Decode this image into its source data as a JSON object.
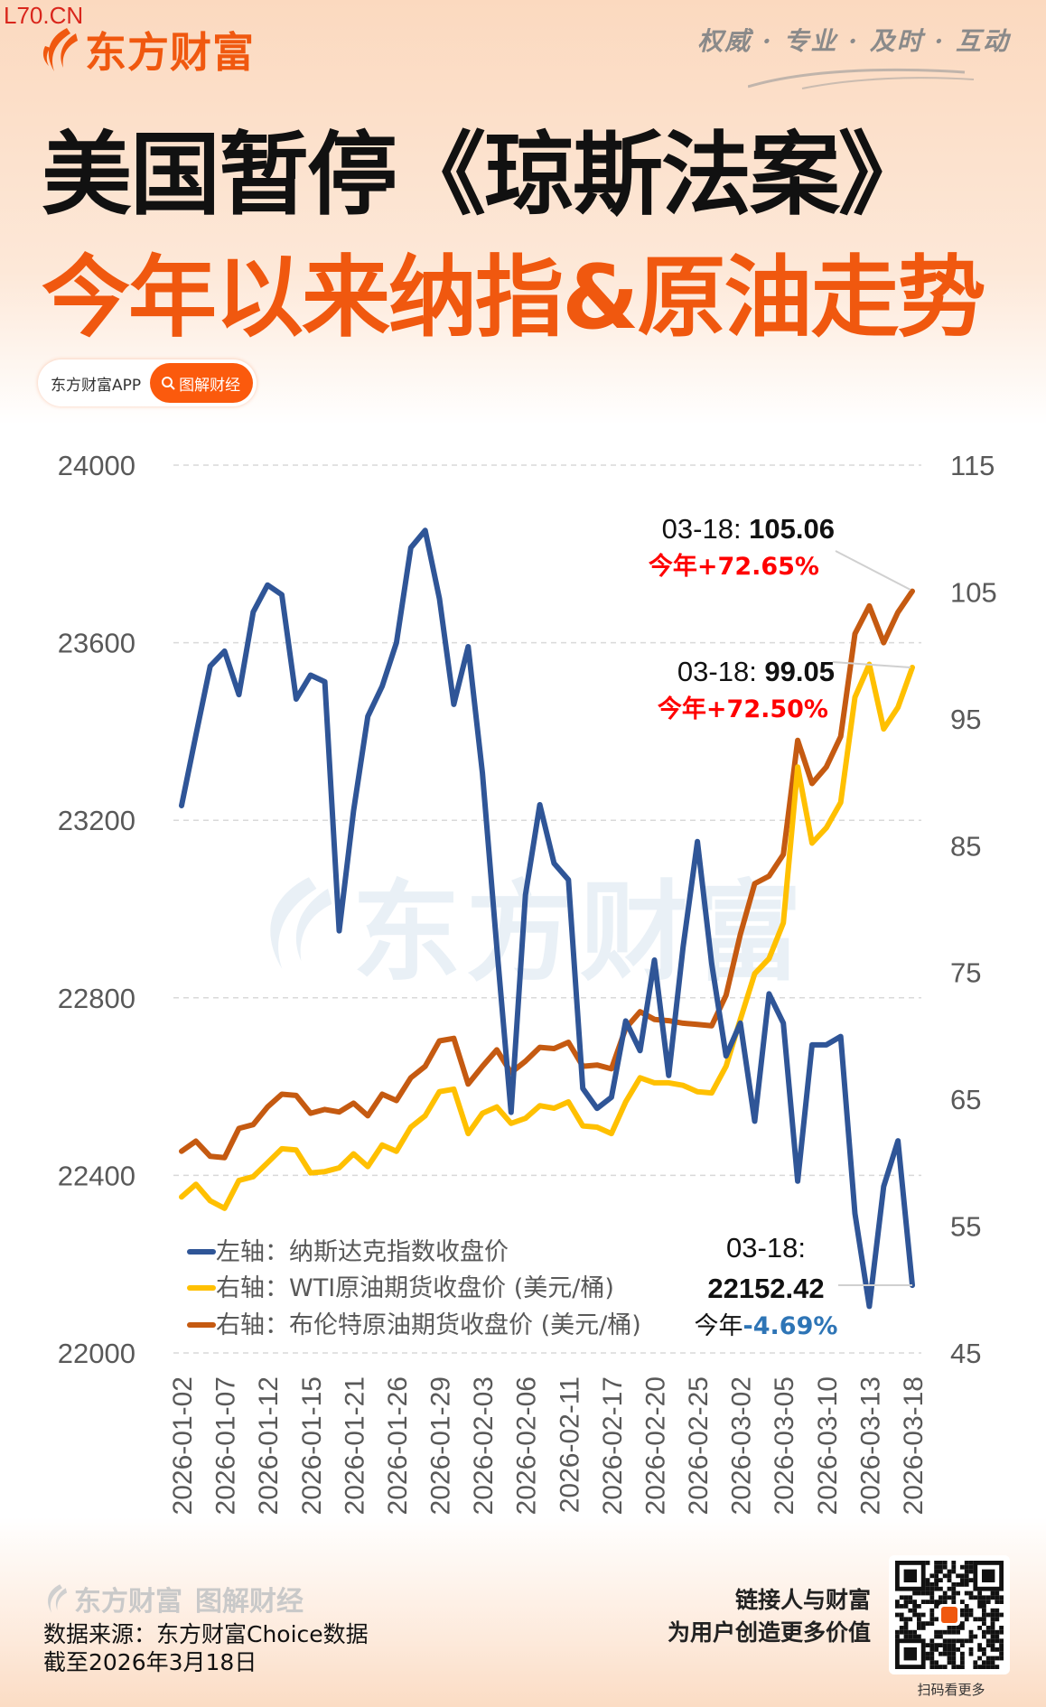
{
  "header": {
    "site_tag": "L70.CN",
    "brand": "东方财富",
    "slogan": "权威 · 专业 · 及时 · 互动",
    "title_line1": "美国暂停《琼斯法案》",
    "title_line2": "今年以来纳指&原油走势",
    "badge_app": "东方财富APP",
    "badge_pill": "图解财经",
    "watermark": "东方财富"
  },
  "colors": {
    "accent": "#f0580f",
    "nasdaq": "#2F5597",
    "wti": "#FFC000",
    "brent": "#C55A11",
    "up_red": "#FF0000",
    "down_blue": "#2E75B6"
  },
  "chart_data": {
    "type": "line",
    "dual_axis": true,
    "grid": "dashed horizontal, left-axis ticks",
    "x": [
      "2026-01-02",
      "2026-01-05",
      "2026-01-06",
      "2026-01-07",
      "2026-01-08",
      "2026-01-09",
      "2026-01-12",
      "2026-01-13",
      "2026-01-14",
      "2026-01-15",
      "2026-01-16",
      "2026-01-20",
      "2026-01-21",
      "2026-01-22",
      "2026-01-23",
      "2026-01-26",
      "2026-01-27",
      "2026-01-28",
      "2026-01-29",
      "2026-01-30",
      "2026-02-02",
      "2026-02-03",
      "2026-02-04",
      "2026-02-05",
      "2026-02-06",
      "2026-02-09",
      "2026-02-10",
      "2026-02-11",
      "2026-02-12",
      "2026-02-13",
      "2026-02-17",
      "2026-02-18",
      "2026-02-19",
      "2026-02-20",
      "2026-02-23",
      "2026-02-24",
      "2026-02-25",
      "2026-02-26",
      "2026-02-27",
      "2026-03-02",
      "2026-03-03",
      "2026-03-04",
      "2026-03-05",
      "2026-03-06",
      "2026-03-09",
      "2026-03-10",
      "2026-03-11",
      "2026-03-12",
      "2026-03-13",
      "2026-03-16",
      "2026-03-17",
      "2026-03-18"
    ],
    "x_tick_labels": [
      "2026-01-02",
      "2026-01-07",
      "2026-01-12",
      "2026-01-15",
      "2026-01-21",
      "2026-01-26",
      "2026-01-29",
      "2026-02-03",
      "2026-02-06",
      "2026-02-11",
      "2026-02-17",
      "2026-02-20",
      "2026-02-25",
      "2026-03-02",
      "2026-03-05",
      "2026-03-10",
      "2026-03-13",
      "2026-03-18"
    ],
    "y_left": {
      "range": [
        22000,
        24000
      ],
      "ticks": [
        "24000",
        "23600",
        "23200",
        "22800",
        "22400",
        "22000"
      ]
    },
    "y_right": {
      "range": [
        45,
        115
      ],
      "ticks": [
        "115",
        "105",
        "95",
        "85",
        "75",
        "65",
        "55",
        "45"
      ]
    },
    "legend_position": "bottom-left",
    "series": [
      {
        "name": "左轴：纳斯达克指数收盘价",
        "axis": "left",
        "color": "#2F5597",
        "values": [
          23233,
          23392,
          23547,
          23581,
          23483,
          23669,
          23730,
          23708,
          23473,
          23527,
          23512,
          22951,
          23221,
          23434,
          23502,
          23600,
          23814,
          23853,
          23699,
          23461,
          23591,
          23306,
          22914,
          22542,
          23032,
          23235,
          23103,
          23066,
          22596,
          22551,
          22576,
          22748,
          22681,
          22885,
          22625,
          22914,
          23152,
          22877,
          22669,
          22743,
          22522,
          22809,
          22743,
          22387,
          22694,
          22694,
          22713,
          22314,
          22105,
          22375,
          22478,
          22152.42
        ]
      },
      {
        "name": "右轴：WTI原油期货收盘价 (美元/桶)",
        "axis": "right",
        "color": "#FFC000",
        "values": [
          57.3,
          58.3,
          57.0,
          56.4,
          58.6,
          58.9,
          60.0,
          61.1,
          61.0,
          59.2,
          59.3,
          59.6,
          60.7,
          59.7,
          61.4,
          60.9,
          62.8,
          63.7,
          65.6,
          65.8,
          62.3,
          63.9,
          64.4,
          63.1,
          63.5,
          64.5,
          64.3,
          64.8,
          62.9,
          62.8,
          62.3,
          64.8,
          66.7,
          66.3,
          66.3,
          66.1,
          65.6,
          65.5,
          67.6,
          71.3,
          74.9,
          76.1,
          78.9,
          91.2,
          85.2,
          86.4,
          88.4,
          96.7,
          99.3,
          94.2,
          95.9,
          99.05
        ]
      },
      {
        "name": "右轴：布伦特原油期货收盘价 (美元/桶)",
        "axis": "right",
        "color": "#C55A11",
        "values": [
          60.9,
          61.7,
          60.5,
          60.4,
          62.7,
          63.0,
          64.4,
          65.4,
          65.3,
          63.9,
          64.2,
          64.0,
          64.7,
          63.7,
          65.4,
          64.9,
          66.7,
          67.6,
          69.6,
          69.8,
          66.2,
          67.6,
          68.9,
          67.1,
          68.0,
          69.1,
          69.0,
          69.5,
          67.6,
          67.7,
          67.4,
          70.6,
          71.9,
          71.3,
          71.2,
          71.0,
          70.9,
          70.8,
          73.2,
          78.0,
          82.0,
          82.6,
          84.3,
          93.3,
          89.9,
          91.2,
          93.6,
          101.7,
          103.9,
          101.0,
          103.4,
          105.06
        ]
      }
    ],
    "annotations": {
      "brent": {
        "date": "03-18: ",
        "value": "105.06",
        "change_prefix": "今年",
        "change": "+72.65%"
      },
      "wti": {
        "date": "03-18: ",
        "value": "99.05",
        "change_prefix": "今年",
        "change": "+72.50%"
      },
      "nasdaq": {
        "date": "03-18:",
        "value": "22152.42",
        "change_prefix": "今年",
        "change": "-4.69%"
      }
    }
  },
  "footer": {
    "brand": "东方财富",
    "brand_sub": "图解财经",
    "source": "数据来源：东方财富Choice数据",
    "as_of": "截至2026年3月18日",
    "slogan_line1": "链接人与财富",
    "slogan_line2": "为用户创造更多价值",
    "qr_caption": "扫码看更多"
  }
}
